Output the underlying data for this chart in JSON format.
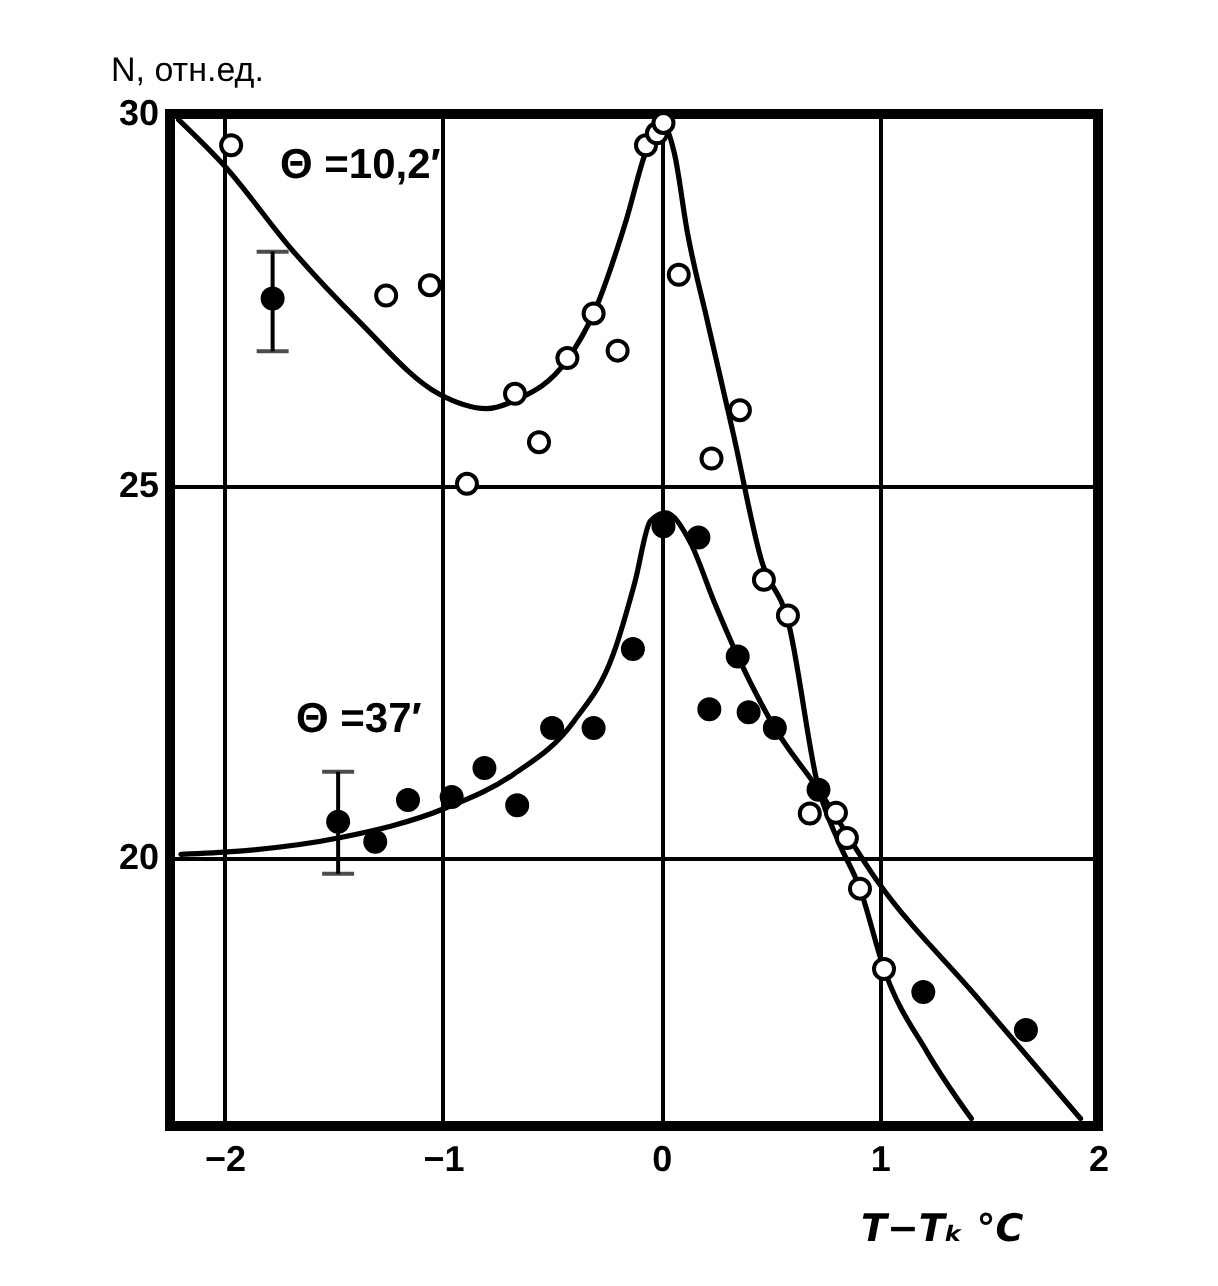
{
  "chart_data": {
    "type": "scatter",
    "xlabel": "T−Tₖ °C",
    "ylabel": "N, отн.ед.",
    "xlim": [
      -2.25,
      2
    ],
    "ylim": [
      16.4,
      30
    ],
    "xticks": [
      -2,
      -1,
      0,
      1,
      2
    ],
    "yticks": [
      20,
      25,
      30
    ],
    "grid": true,
    "marker": "circle",
    "line_style": "solid",
    "series": [
      {
        "name": "Θ =10,2′",
        "color": "#ffffff",
        "x": [
          -1.97,
          -1.26,
          -1.06,
          -0.89,
          -0.67,
          -0.56,
          -0.43,
          -0.31,
          -0.2,
          -0.07,
          -0.02,
          0.01,
          0.08,
          0.23,
          0.36,
          0.47,
          0.58,
          0.68,
          0.8,
          0.85,
          0.91,
          1.02
        ],
        "values": [
          29.58,
          27.56,
          27.7,
          25.03,
          26.24,
          25.59,
          26.72,
          27.32,
          26.82,
          29.58,
          29.74,
          29.88,
          27.84,
          25.37,
          26.02,
          23.74,
          23.26,
          20.6,
          20.61,
          20.27,
          19.59,
          18.51
        ]
      },
      {
        "name": "Θ =37′",
        "color": "#000000",
        "x": [
          -1.48,
          -1.31,
          -1.16,
          -0.96,
          -0.81,
          -0.66,
          -0.5,
          -0.31,
          -0.13,
          0.01,
          0.17,
          0.22,
          0.35,
          0.4,
          0.52,
          0.72,
          1.2,
          1.67
        ],
        "values": [
          20.49,
          20.22,
          20.78,
          20.82,
          21.21,
          20.71,
          21.75,
          21.75,
          22.81,
          24.46,
          24.31,
          22.0,
          22.71,
          21.96,
          21.75,
          20.92,
          18.2,
          17.69
        ],
        "errors": [
          [
            19.79,
            21.16
          ],
          null,
          null,
          null,
          null,
          null,
          null,
          null,
          null,
          null,
          null,
          null,
          null,
          null,
          null,
          null,
          null,
          null
        ]
      },
      {
        "color": "#000000",
        "x": [
          -1.78
        ],
        "values": [
          27.52
        ],
        "errors": [
          [
            26.81,
            28.15
          ]
        ]
      },
      {
        "type": "line",
        "color": "#000000",
        "marker": "none",
        "x": [
          -2.21,
          -2.0,
          -1.69,
          -1.39,
          -1.02,
          -0.8,
          -0.67,
          -0.43,
          -0.31,
          -0.16,
          -0.07,
          0.0,
          0.06,
          0.12,
          0.21,
          0.33,
          0.46,
          0.58,
          0.72,
          0.81,
          0.91,
          1.02,
          1.22,
          1.42
        ],
        "values": [
          29.92,
          29.3,
          28.17,
          27.23,
          26.24,
          26.04,
          26.15,
          26.7,
          27.32,
          28.58,
          29.5,
          29.88,
          29.47,
          28.4,
          27.23,
          25.7,
          23.99,
          23.19,
          20.94,
          20.23,
          19.59,
          18.51,
          17.38,
          16.5
        ]
      },
      {
        "type": "line",
        "color": "#000000",
        "marker": "none",
        "x": [
          -2.2,
          -1.95,
          -1.48,
          -0.99,
          -0.68,
          -0.4,
          -0.22,
          -0.12,
          -0.05,
          0.02,
          0.13,
          0.24,
          0.36,
          0.52,
          0.72,
          0.99,
          1.44,
          1.92
        ],
        "values": [
          20.05,
          20.09,
          20.27,
          20.67,
          21.12,
          21.84,
          22.74,
          23.72,
          24.53,
          24.64,
          24.26,
          23.46,
          22.65,
          21.75,
          20.92,
          19.69,
          18.15,
          16.5
        ]
      }
    ]
  }
}
